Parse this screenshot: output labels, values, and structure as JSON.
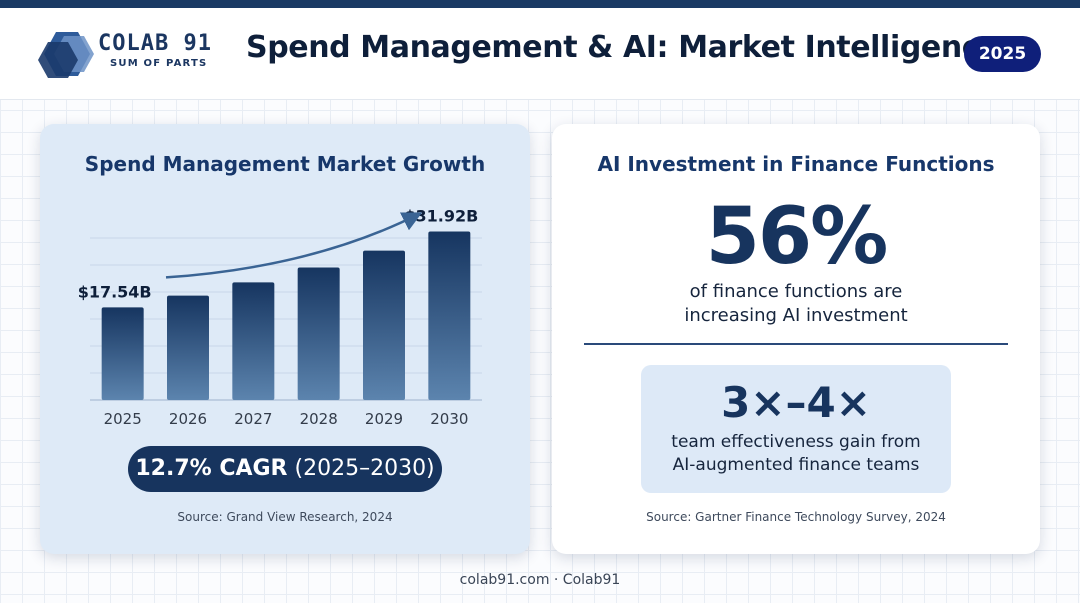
{
  "header": {
    "logo_name": "COLAB 91",
    "logo_tagline": "SUM OF PARTS",
    "title": "Spend Management & AI: Market Intelligence",
    "year_badge": "2025"
  },
  "market_card": {
    "title": "Spend Management Market Growth",
    "cagr_strong": "12.7% CAGR",
    "cagr_period": "(2025–2030)",
    "source": "Source: Grand View Research, 2024"
  },
  "ai_card": {
    "title": "AI Investment in Finance Functions",
    "big_stat": "56%",
    "big_stat_line1": "of finance functions are",
    "big_stat_line2": "increasing AI investment",
    "multiplier": "3×–4×",
    "multiplier_line1": "team effectiveness gain from",
    "multiplier_line2": "AI-augmented finance teams",
    "source": "Source: Gartner Finance Technology Survey, 2024"
  },
  "footer": {
    "text": "colab91.com · Colab91"
  },
  "colors": {
    "brand_navy": "#17345e",
    "badge_blue": "#0f1f7a",
    "card_light_blue": "#deeaf7",
    "bar_top": "#163560",
    "bar_bottom": "#5c84ae",
    "trend_arrow": "#3a6494"
  },
  "chart_data": {
    "type": "bar",
    "title": "Spend Management Market Growth",
    "categories": [
      "2025",
      "2026",
      "2027",
      "2028",
      "2029",
      "2030"
    ],
    "values": [
      17.54,
      19.77,
      22.28,
      25.11,
      28.3,
      31.92
    ],
    "unit": "USD billions",
    "data_labels": {
      "2025": "$17.54B",
      "2030": "$31.92B"
    },
    "trend_arrow": true,
    "grid": true,
    "ylim": [
      0,
      36
    ],
    "xlabel": "",
    "ylabel": ""
  }
}
